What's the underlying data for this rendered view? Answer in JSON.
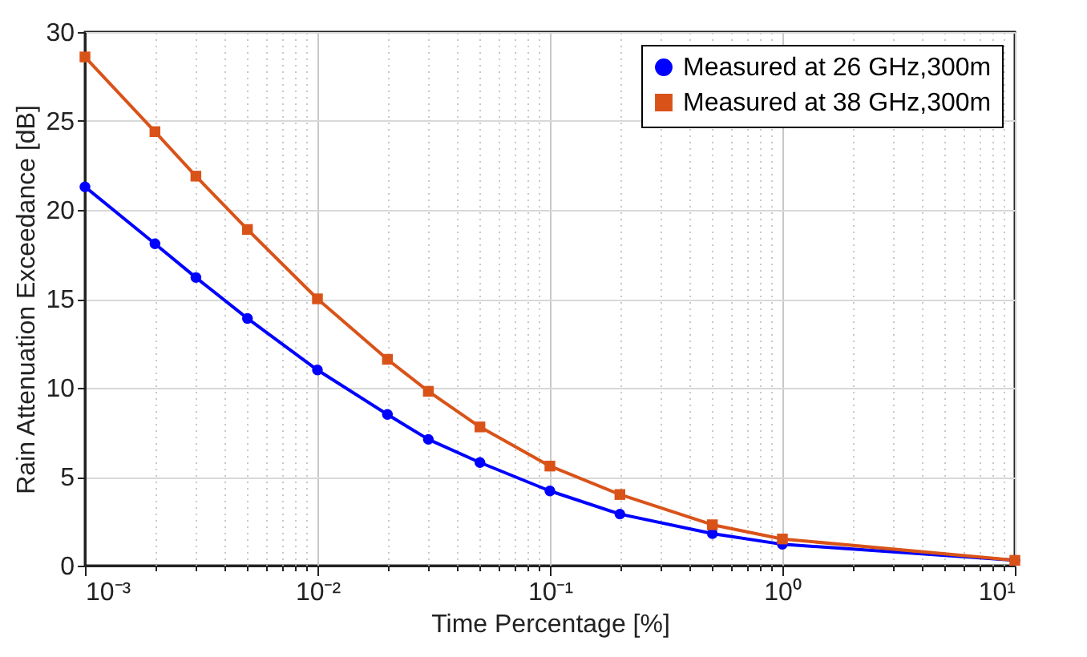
{
  "chart_data": {
    "type": "line",
    "xlabel": "Time Percentage [%]",
    "ylabel": "Rain Attenuation Exceedance [dB]",
    "x": [
      0.001,
      0.002,
      0.003,
      0.005,
      0.01,
      0.02,
      0.03,
      0.05,
      0.1,
      0.2,
      0.5,
      1,
      10
    ],
    "series": [
      {
        "name": "Measured at 26 GHz,300m",
        "color": "#0000ff",
        "marker": "circle",
        "values": [
          21.3,
          18.1,
          16.2,
          13.9,
          11.0,
          8.5,
          7.1,
          5.8,
          4.2,
          2.9,
          1.8,
          1.2,
          0.3
        ]
      },
      {
        "name": "Measured at 38 GHz,300m",
        "color": "#d95319",
        "marker": "square",
        "values": [
          28.6,
          24.4,
          21.9,
          18.9,
          15.0,
          11.6,
          9.8,
          7.8,
          5.6,
          4.0,
          2.3,
          1.5,
          0.3
        ]
      }
    ],
    "log": "x",
    "xlim": [
      0.001,
      10
    ],
    "xticks": [
      {
        "value": 0.001,
        "label": "10⁻³"
      },
      {
        "value": 0.002,
        "label": null
      },
      {
        "value": 0.003,
        "label": null
      },
      {
        "value": 0.004,
        "label": null
      },
      {
        "value": 0.005,
        "label": null
      },
      {
        "value": 0.006,
        "label": null
      },
      {
        "value": 0.007,
        "label": null
      },
      {
        "value": 0.008,
        "label": null
      },
      {
        "value": 0.009,
        "label": null
      },
      {
        "value": 0.01,
        "label": "10⁻²"
      },
      {
        "value": 0.02,
        "label": null
      },
      {
        "value": 0.03,
        "label": null
      },
      {
        "value": 0.04,
        "label": null
      },
      {
        "value": 0.05,
        "label": null
      },
      {
        "value": 0.06,
        "label": null
      },
      {
        "value": 0.07,
        "label": null
      },
      {
        "value": 0.08,
        "label": null
      },
      {
        "value": 0.09,
        "label": null
      },
      {
        "value": 0.1,
        "label": "10⁻¹"
      },
      {
        "value": 0.2,
        "label": null
      },
      {
        "value": 0.3,
        "label": null
      },
      {
        "value": 0.4,
        "label": null
      },
      {
        "value": 0.5,
        "label": null
      },
      {
        "value": 0.6,
        "label": null
      },
      {
        "value": 0.7,
        "label": null
      },
      {
        "value": 0.8,
        "label": null
      },
      {
        "value": 0.9,
        "label": null
      },
      {
        "value": 1,
        "label": "10⁰"
      },
      {
        "value": 2,
        "label": null
      },
      {
        "value": 3,
        "label": null
      },
      {
        "value": 4,
        "label": null
      },
      {
        "value": 5,
        "label": null
      },
      {
        "value": 6,
        "label": null
      },
      {
        "value": 7,
        "label": null
      },
      {
        "value": 8,
        "label": null
      },
      {
        "value": 9,
        "label": null
      },
      {
        "value": 10,
        "label": "10¹"
      }
    ],
    "ylim": [
      0,
      30
    ],
    "yticks": [
      0,
      5,
      10,
      15,
      20,
      25,
      30
    ],
    "grid": true,
    "legend": "top right",
    "line_style": "solid"
  }
}
